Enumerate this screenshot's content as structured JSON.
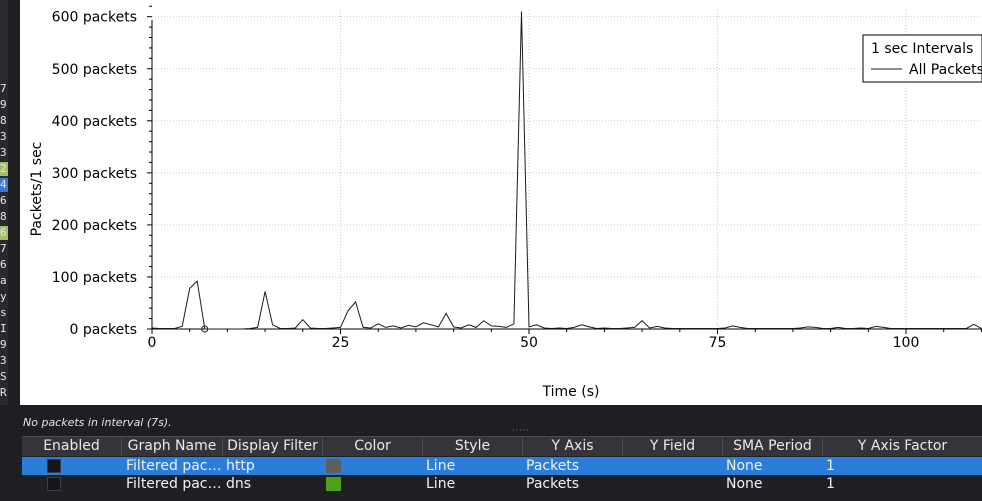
{
  "left_strip": [
    "7",
    "9",
    "8",
    "3",
    "3",
    "2",
    "4",
    "6",
    "8",
    "6",
    "7",
    "6",
    "a",
    "y",
    "s",
    "I",
    "9",
    "3",
    "S",
    "R"
  ],
  "chart_data": {
    "type": "line",
    "xlabel": "Time (s)",
    "ylabel": "Packets/1 sec",
    "xlim": [
      0,
      110
    ],
    "ylim": [
      0,
      620
    ],
    "x_ticks": [
      0,
      25,
      50,
      75,
      100
    ],
    "y_ticks": [
      0,
      100,
      200,
      300,
      400,
      500,
      600
    ],
    "y_tick_labels": [
      "0 packets",
      "100 packets",
      "200 packets",
      "300 packets",
      "400 packets",
      "500 packets",
      "600 packets"
    ],
    "grid": true,
    "legend_title": "1 sec Intervals",
    "legend_placement": "top-right",
    "series": [
      {
        "name": "All Packets",
        "color": "#1a1a1a",
        "x": [
          0,
          1,
          2,
          3,
          4,
          5,
          6,
          7,
          8,
          9,
          10,
          11,
          12,
          13,
          14,
          15,
          16,
          17,
          18,
          19,
          20,
          21,
          22,
          23,
          24,
          25,
          26,
          27,
          28,
          29,
          30,
          31,
          32,
          33,
          34,
          35,
          36,
          37,
          38,
          39,
          40,
          41,
          42,
          43,
          44,
          45,
          46,
          47,
          48,
          49,
          50,
          51,
          52,
          53,
          54,
          55,
          56,
          57,
          58,
          59,
          60,
          61,
          62,
          63,
          64,
          65,
          66,
          67,
          68,
          69,
          70,
          71,
          72,
          73,
          74,
          75,
          76,
          77,
          78,
          79,
          80,
          81,
          82,
          83,
          84,
          85,
          86,
          87,
          88,
          89,
          90,
          91,
          92,
          93,
          94,
          95,
          96,
          97,
          98,
          99,
          100,
          101,
          102,
          103,
          104,
          105,
          106,
          107,
          108,
          109,
          110
        ],
        "values": [
          2,
          1,
          1,
          1,
          5,
          78,
          92,
          0,
          0,
          0,
          0,
          0,
          0,
          1,
          3,
          72,
          8,
          1,
          1,
          2,
          18,
          2,
          1,
          1,
          2,
          3,
          35,
          52,
          3,
          2,
          10,
          3,
          6,
          2,
          7,
          4,
          12,
          8,
          4,
          30,
          4,
          2,
          8,
          3,
          16,
          6,
          5,
          3,
          10,
          610,
          4,
          8,
          2,
          1,
          2,
          1,
          3,
          8,
          4,
          1,
          2,
          1,
          1,
          2,
          3,
          16,
          2,
          5,
          2,
          1,
          1,
          1,
          1,
          1,
          1,
          1,
          2,
          6,
          3,
          1,
          1,
          1,
          1,
          1,
          1,
          1,
          2,
          4,
          3,
          1,
          1,
          3,
          1,
          1,
          2,
          1,
          5,
          3,
          1,
          1,
          1,
          1,
          1,
          1,
          1,
          1,
          1,
          1,
          1,
          9,
          1
        ],
        "markers": [
          {
            "x": 7,
            "y": 0,
            "style": "circle"
          }
        ]
      }
    ]
  },
  "status_text": "No packets in interval (7s).",
  "table": {
    "headers": [
      "Enabled",
      "Graph Name",
      "Display Filter",
      "Color",
      "Style",
      "Y Axis",
      "Y Field",
      "SMA Period",
      "Y Axis Factor"
    ],
    "rows": [
      {
        "enabled": true,
        "graph_name": "Filtered pac…",
        "display_filter": "http",
        "color": "#5e5e5e",
        "style": "Line",
        "y_axis": "Packets",
        "y_field": "",
        "sma_period": "None",
        "y_axis_factor": "1",
        "selected": true
      },
      {
        "enabled": true,
        "graph_name": "Filtered pac…",
        "display_filter": "dns",
        "color": "#4ea11a",
        "style": "Line",
        "y_axis": "Packets",
        "y_field": "",
        "sma_period": "None",
        "y_axis_factor": "1",
        "selected": false
      }
    ]
  }
}
